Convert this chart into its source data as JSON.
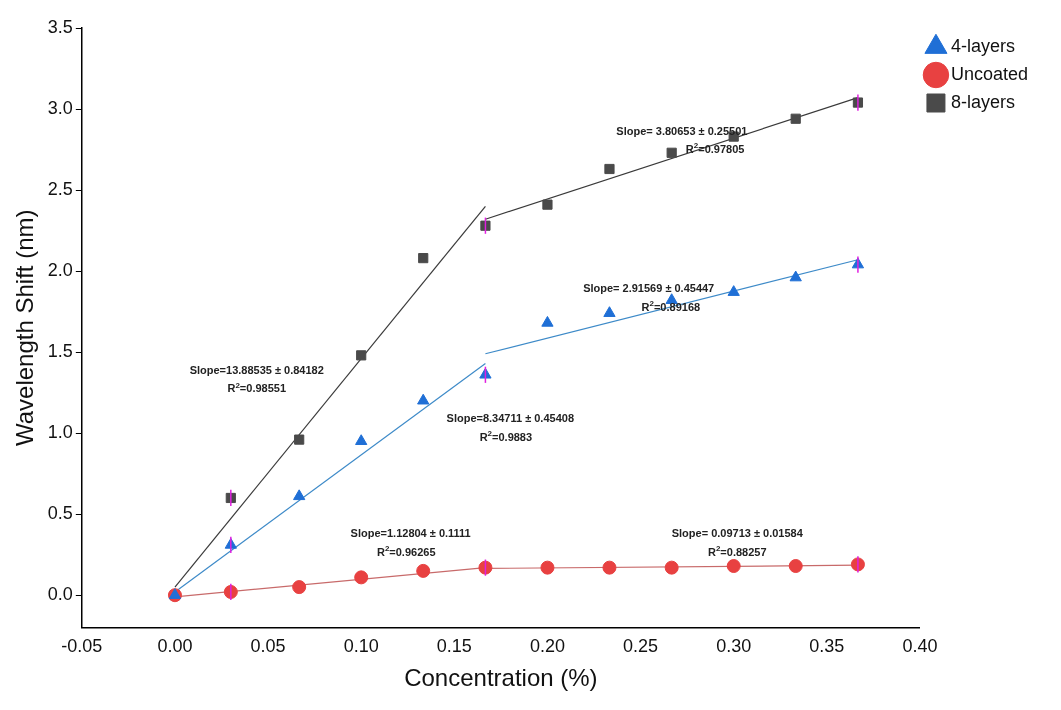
{
  "chart_data": {
    "type": "scatter",
    "xlabel": "Concentration (%)",
    "ylabel": "Wavelength Shift (nm)",
    "xlim": [
      -0.05,
      0.4
    ],
    "xticks": [
      {
        "value": -0.05,
        "label": "-0.05"
      },
      {
        "value": 0,
        "label": "0.00"
      },
      {
        "value": 0.05,
        "label": "0.05"
      },
      {
        "value": 0.1,
        "label": "0.10"
      },
      {
        "value": 0.15,
        "label": "0.15"
      },
      {
        "value": 0.2,
        "label": "0.20"
      },
      {
        "value": 0.25,
        "label": "0.25"
      },
      {
        "value": 0.3,
        "label": "0.30"
      },
      {
        "value": 0.35,
        "label": "0.35"
      },
      {
        "value": 0.4,
        "label": "0.40"
      }
    ],
    "ylim": [
      -0.2,
      3.5
    ],
    "yticks": [
      {
        "value": 0,
        "label": "0.0"
      },
      {
        "value": 0.5,
        "label": "0.5"
      },
      {
        "value": 1,
        "label": "1.0"
      },
      {
        "value": 1.5,
        "label": "1.5"
      },
      {
        "value": 2,
        "label": "2.0"
      },
      {
        "value": 2.5,
        "label": "2.5"
      },
      {
        "value": 3,
        "label": "3.0"
      },
      {
        "value": 3.5,
        "label": "3.5"
      }
    ],
    "x": [
      0,
      0.03,
      0.0667,
      0.1,
      0.1333,
      0.1667,
      0.2,
      0.2333,
      0.2667,
      0.3,
      0.3333,
      0.3667
    ],
    "grid": false,
    "legend": "top right",
    "series": [
      {
        "name": "8-layers",
        "color": "#4a4a4a",
        "marker": "square",
        "values": [
          0,
          0.6,
          0.96,
          1.48,
          2.08,
          2.28,
          2.41,
          2.63,
          2.73,
          2.83,
          2.94,
          3.04
        ],
        "errors": [
          null,
          0.05,
          null,
          null,
          null,
          0.05,
          null,
          null,
          null,
          null,
          null,
          0.05
        ]
      },
      {
        "name": "Uncoated",
        "color": "#e84141",
        "marker": "circle",
        "values": [
          0,
          0.02,
          0.05,
          0.11,
          0.15,
          0.17,
          0.17,
          0.17,
          0.17,
          0.18,
          0.18,
          0.19
        ],
        "errors": [
          null,
          0.05,
          null,
          null,
          null,
          0.05,
          null,
          null,
          null,
          null,
          null,
          0.05
        ]
      },
      {
        "name": "4-layers",
        "color": "#1f6fd6",
        "marker": "triangle",
        "values": [
          0,
          0.31,
          0.61,
          0.95,
          1.2,
          1.36,
          1.68,
          1.74,
          1.82,
          1.87,
          1.96,
          2.04
        ],
        "errors": [
          null,
          0.05,
          null,
          null,
          null,
          0.05,
          null,
          null,
          null,
          null,
          null,
          0.05
        ]
      },
      {
        "type": "line",
        "color": "#3a3a3a",
        "x": [
          0,
          0.1667
        ],
        "values": [
          0.05,
          2.4
        ]
      },
      {
        "type": "line",
        "color": "#3a3a3a",
        "x": [
          0.1667,
          0.3667
        ],
        "values": [
          2.32,
          3.07
        ]
      },
      {
        "type": "line",
        "color": "#3d8ac8",
        "x": [
          0,
          0.1667
        ],
        "values": [
          0.02,
          1.43
        ]
      },
      {
        "type": "line",
        "color": "#3d8ac8",
        "x": [
          0.1667,
          0.3667
        ],
        "values": [
          1.49,
          2.07
        ]
      },
      {
        "type": "line",
        "color": "#c86a6a",
        "x": [
          0,
          0.1667
        ],
        "values": [
          -0.01,
          0.17
        ]
      },
      {
        "type": "line",
        "color": "#c86a6a",
        "x": [
          0.1667,
          0.3667
        ],
        "values": [
          0.165,
          0.185
        ]
      }
    ],
    "annotations": [
      "Slope=13.88535 ± 0.84182",
      "R$^{2}$=0.98551",
      "Slope=8.34711 ± 0.45408",
      "R$^{2}$=0.9883",
      "Slope= 3.80653 ± 0.25501",
      "R$^{2}$=0.97805",
      "Slope= 2.91569 ± 0.45447",
      "R$^{2}$=0.89168",
      "Slope=1.12804 ± 0.1111",
      "R$^{2}$=0.96265",
      "Slope= 0.09713 ± 0.01584",
      "R$^{2}$=0.88257"
    ]
  }
}
